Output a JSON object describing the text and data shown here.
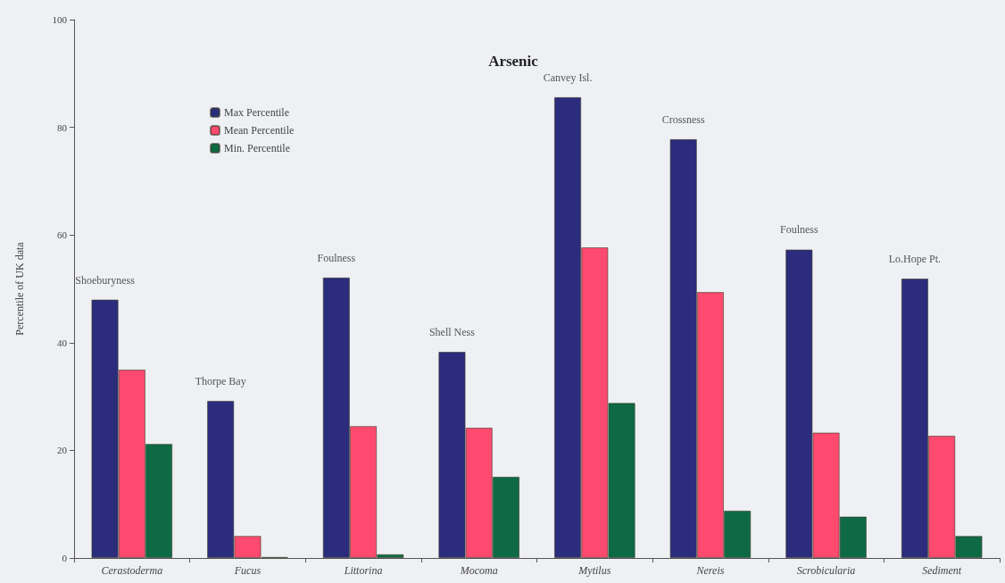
{
  "chart_data": {
    "type": "bar",
    "title": "Arsenic",
    "ylabel": "Percentile of UK data",
    "categories": [
      "Cerastoderma",
      "Fucus",
      "Littorina",
      "Mocoma",
      "Mytilus",
      "Nereis",
      "Scrobicularia",
      "Sediment"
    ],
    "series": [
      {
        "name": "Max Percentile",
        "color": "#2b2c7c",
        "values": [
          48.0,
          29.2,
          52.1,
          38.3,
          85.6,
          77.8,
          57.3,
          51.9
        ]
      },
      {
        "name": "Mean Percentile",
        "color": "#fd4a6e",
        "values": [
          35.0,
          4.1,
          24.5,
          24.2,
          57.7,
          49.4,
          23.3,
          22.7
        ]
      },
      {
        "name": "Min. Percentile",
        "color": "#0d6a44",
        "values": [
          21.2,
          0.2,
          0.7,
          15.1,
          28.8,
          8.8,
          7.7,
          4.1
        ]
      }
    ],
    "ylim": [
      0,
      100
    ],
    "yticks": [
      0,
      20,
      40,
      60,
      80,
      100
    ],
    "grid": false,
    "legend": "top left",
    "annotations": [
      "Shoeburyness",
      "Thorpe Bay",
      "Foulness",
      "Shell Ness",
      "Canvey Isl.",
      "Crossness",
      "Foulness",
      "Lo.Hope Pt."
    ]
  }
}
